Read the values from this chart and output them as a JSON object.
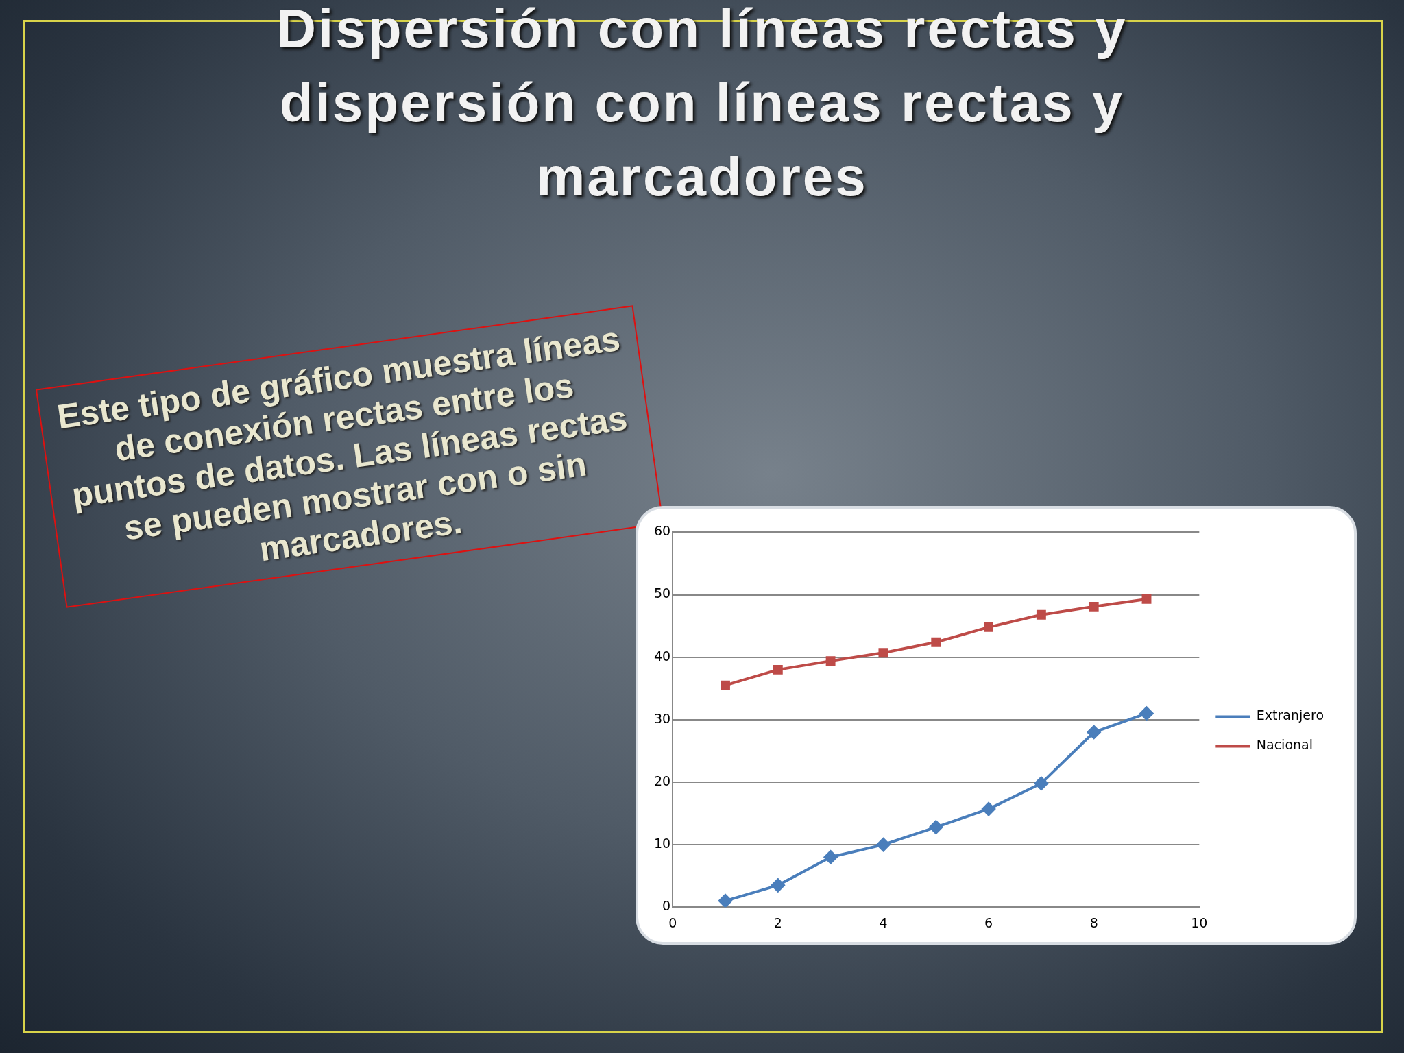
{
  "chart_data": {
    "type": "line",
    "title": "Dispersión con líneas rectas y dispersión con líneas rectas y marcadores",
    "annotations": [
      "Este tipo de gráfico muestra líneas de conexión rectas entre los puntos de datos. Las líneas rectas se pueden mostrar con o sin marcadores."
    ],
    "x": [
      1,
      2,
      3,
      4,
      5,
      6,
      7,
      8,
      9
    ],
    "series": [
      {
        "name": "Extranjero",
        "color": "#4a7ebb",
        "marker": "diamond",
        "values": [
          1,
          3.5,
          8,
          10,
          12.8,
          15.7,
          19.8,
          28,
          31
        ]
      },
      {
        "name": "Nacional",
        "color": "#be4b48",
        "marker": "square",
        "values": [
          35.5,
          38,
          39.4,
          40.7,
          42.4,
          44.8,
          46.8,
          48.1,
          49.3
        ]
      }
    ],
    "xlim": [
      0,
      10
    ],
    "xticks": [
      0,
      2,
      4,
      6,
      8,
      10
    ],
    "ylim": [
      0,
      60
    ],
    "yticks": [
      0,
      10,
      20,
      30,
      40,
      50,
      60
    ],
    "grid": "y",
    "legend": "right",
    "line_style": "solid"
  }
}
